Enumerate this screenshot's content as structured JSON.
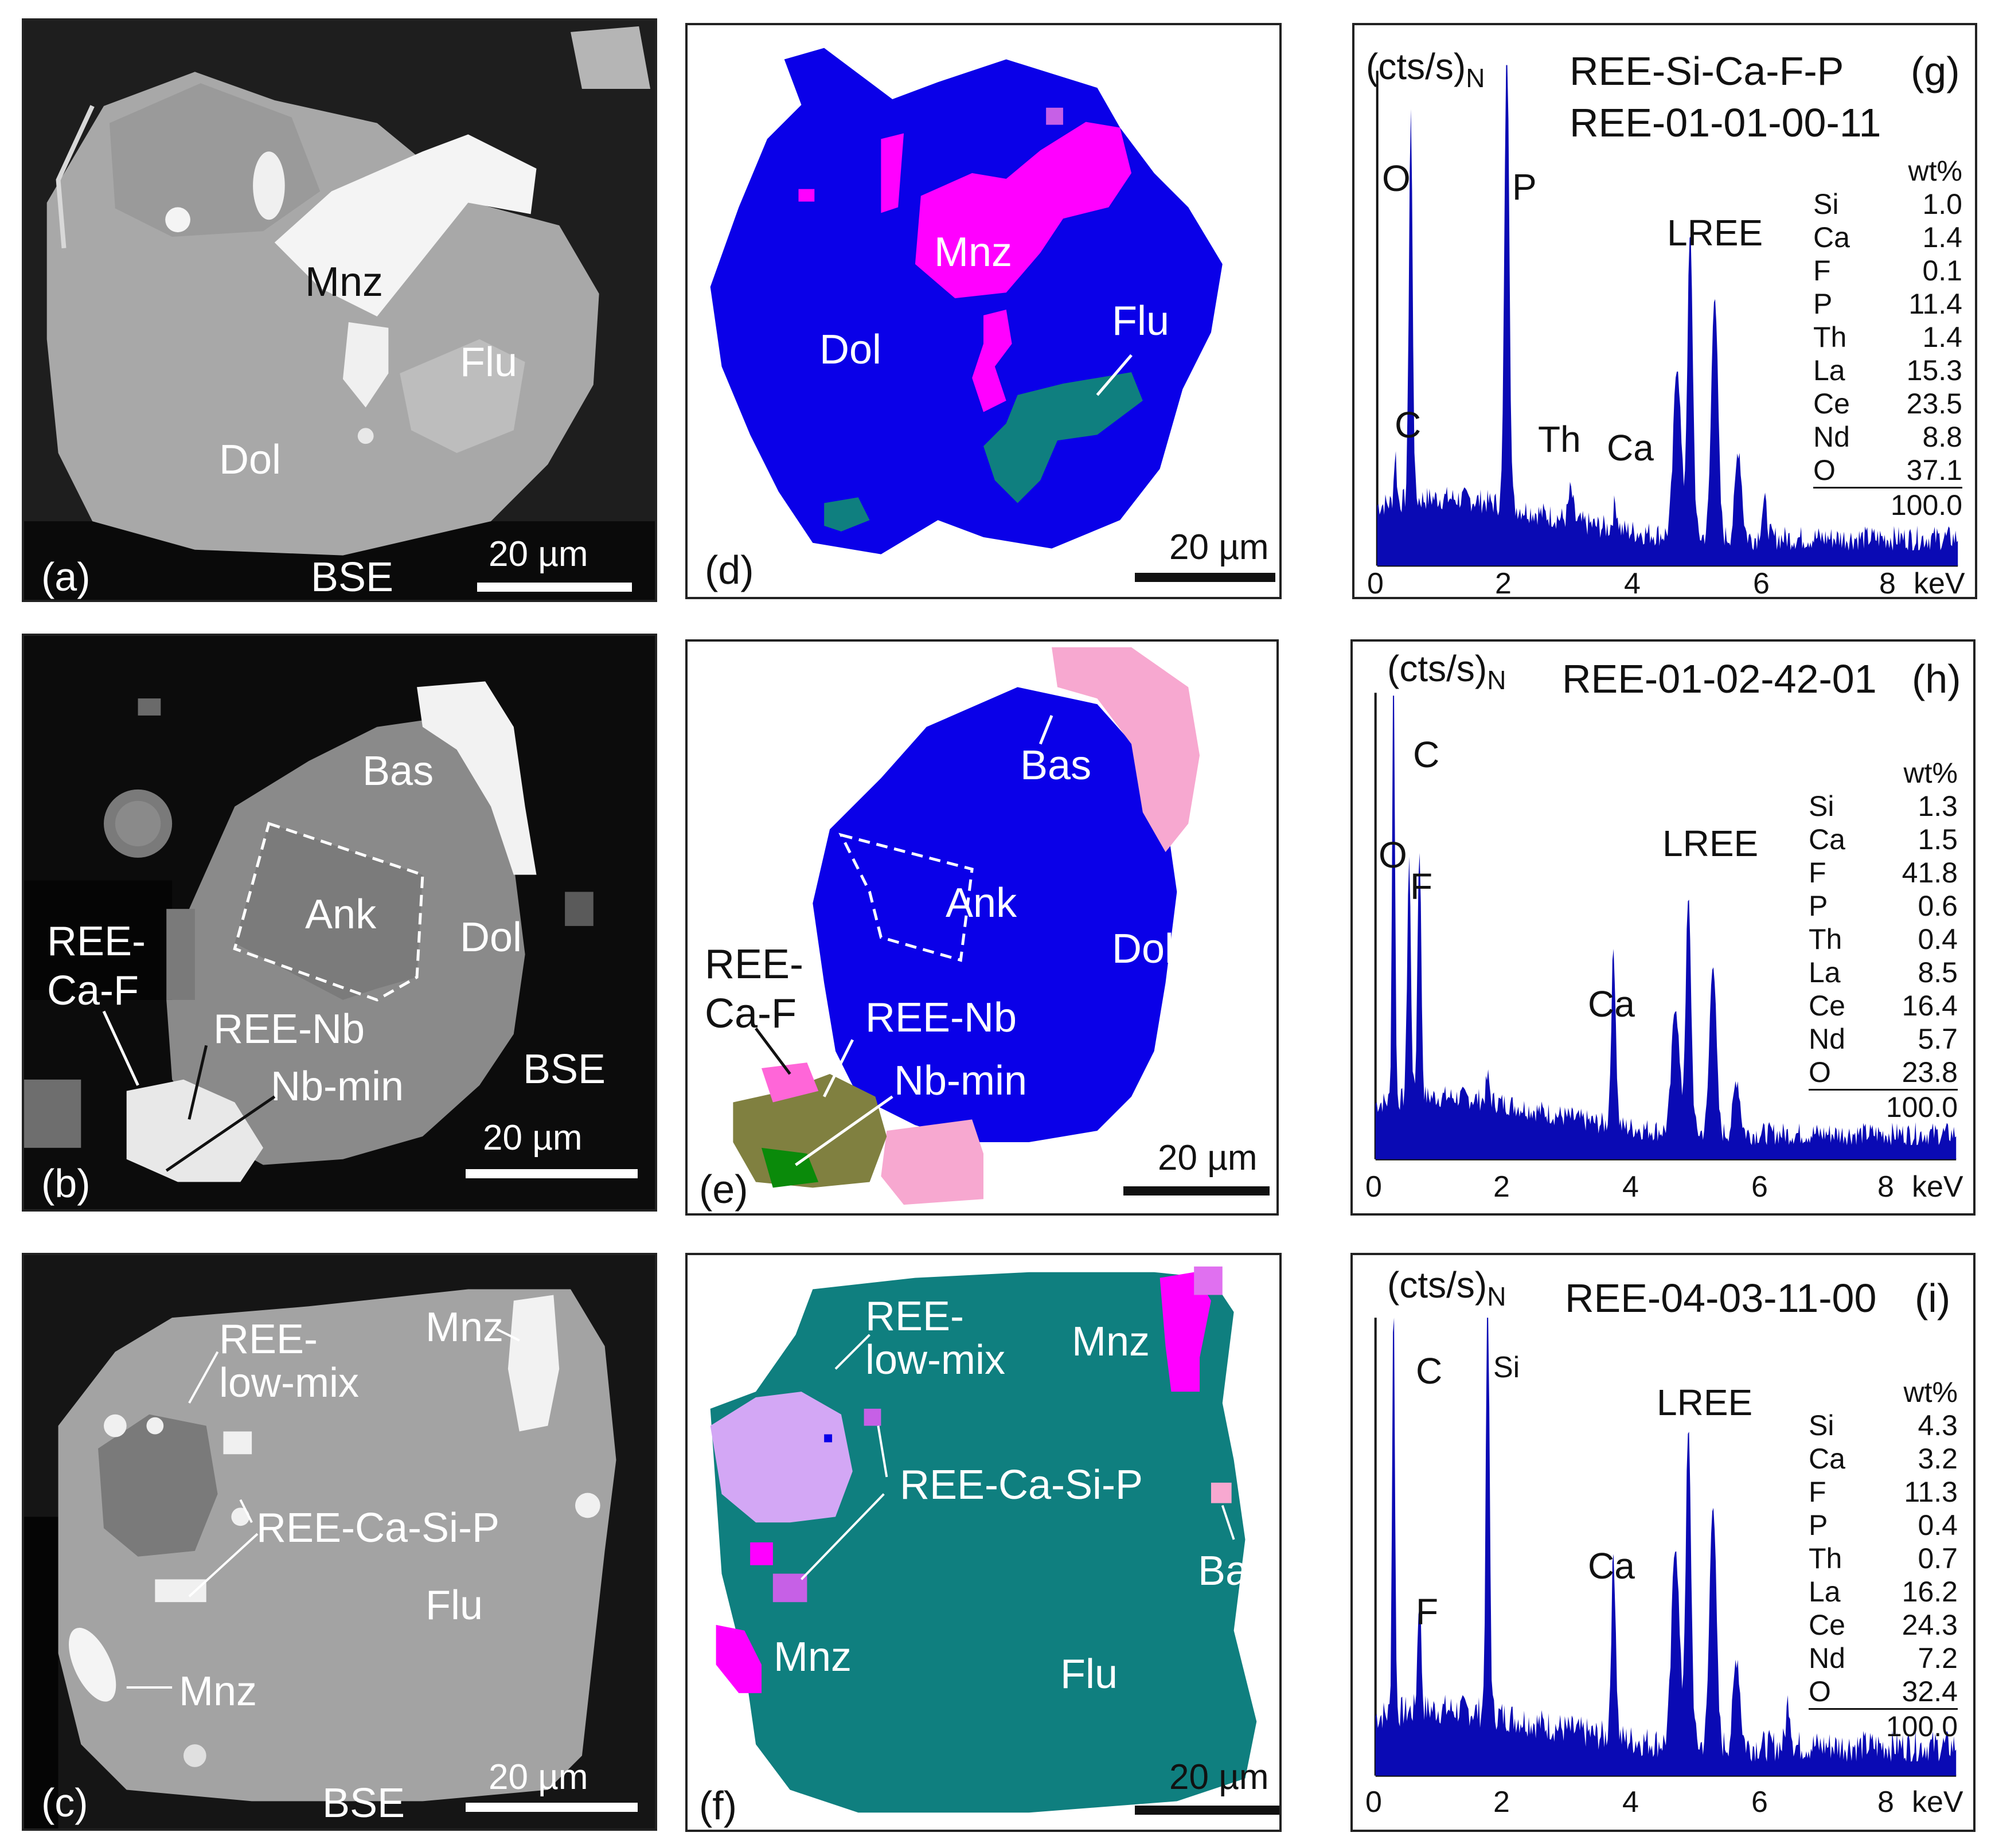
{
  "panels": {
    "a": {
      "letter": "(a)",
      "mode": "BSE",
      "scale": "20 µm",
      "labels": {
        "mnz": "Mnz",
        "flu": "Flu",
        "dol": "Dol"
      }
    },
    "b": {
      "letter": "(b)",
      "mode": "BSE",
      "scale": "20 µm",
      "labels": {
        "bas": "Bas",
        "ank": "Ank",
        "dol": "Dol",
        "reecaf": "REE-\nCa-F",
        "reenb": "REE-Nb",
        "nbmin": "Nb-min"
      }
    },
    "c": {
      "letter": "(c)",
      "mode": "BSE",
      "scale": "20 µm",
      "labels": {
        "mnz1": "Mnz",
        "reelow": "REE-\nlow-mix",
        "reecasip": "REE-Ca-Si-P",
        "flu": "Flu",
        "mnz2": "Mnz"
      }
    },
    "d": {
      "letter": "(d)",
      "scale": "20 µm",
      "labels": {
        "mnz": "Mnz",
        "dol": "Dol",
        "flu": "Flu"
      }
    },
    "e": {
      "letter": "(e)",
      "scale": "20 µm",
      "labels": {
        "bas": "Bas",
        "ank": "Ank",
        "dol": "Dol",
        "reecaf": "REE-\nCa-F",
        "reenb": "REE-Nb",
        "nbmin": "Nb-min"
      }
    },
    "f": {
      "letter": "(f)",
      "scale": "20 µm",
      "labels": {
        "reelow": "REE-\nlow-mix",
        "mnz1": "Mnz",
        "reecasip": "REE-Ca-Si-P",
        "bas": "Bas",
        "mnz2": "Mnz",
        "flu": "Flu"
      }
    },
    "g": {
      "letter": "(g)",
      "ylabel": "(cts/s)",
      "ylabel_sub": "N",
      "title1": "REE-Si-Ca-F-P",
      "title2": "REE-01-01-00-11",
      "peaks": {
        "o": "O",
        "p": "P",
        "c": "C",
        "th": "Th",
        "ca": "Ca",
        "lree": "LREE"
      },
      "comp_header": "wt%",
      "comp": [
        [
          "Si",
          "1.0"
        ],
        [
          "Ca",
          "1.4"
        ],
        [
          "F",
          "0.1"
        ],
        [
          "P",
          "11.4"
        ],
        [
          "Th",
          "1.4"
        ],
        [
          "La",
          "15.3"
        ],
        [
          "Ce",
          "23.5"
        ],
        [
          "Nd",
          "8.8"
        ],
        [
          "O",
          "37.1"
        ]
      ],
      "total": "100.0",
      "xticks": [
        "0",
        "2",
        "4",
        "6",
        "8"
      ],
      "xunit": "keV"
    },
    "h": {
      "letter": "(h)",
      "ylabel": "(cts/s)",
      "ylabel_sub": "N",
      "title1": "REE-01-02-42-01",
      "peaks": {
        "c": "C",
        "o": "O",
        "f": "F",
        "ca": "Ca",
        "lree": "LREE"
      },
      "comp_header": "wt%",
      "comp": [
        [
          "Si",
          "1.3"
        ],
        [
          "Ca",
          "1.5"
        ],
        [
          "F",
          "41.8"
        ],
        [
          "P",
          "0.6"
        ],
        [
          "Th",
          "0.4"
        ],
        [
          "La",
          "8.5"
        ],
        [
          "Ce",
          "16.4"
        ],
        [
          "Nd",
          "5.7"
        ],
        [
          "O",
          "23.8"
        ]
      ],
      "total": "100.0",
      "xticks": [
        "0",
        "2",
        "4",
        "6",
        "8"
      ],
      "xunit": "keV"
    },
    "i": {
      "letter": "(i)",
      "ylabel": "(cts/s)",
      "ylabel_sub": "N",
      "title1": "REE-04-03-11-00",
      "peaks": {
        "c": "C",
        "si": "Si",
        "f": "F",
        "ca": "Ca",
        "lree": "LREE"
      },
      "comp_header": "wt%",
      "comp": [
        [
          "Si",
          "4.3"
        ],
        [
          "Ca",
          "3.2"
        ],
        [
          "F",
          "11.3"
        ],
        [
          "P",
          "0.4"
        ],
        [
          "Th",
          "0.7"
        ],
        [
          "La",
          "16.2"
        ],
        [
          "Ce",
          "24.3"
        ],
        [
          "Nd",
          "7.2"
        ],
        [
          "O",
          "32.4"
        ]
      ],
      "total": "100.0",
      "xticks": [
        "0",
        "2",
        "4",
        "6",
        "8"
      ],
      "xunit": "keV"
    }
  },
  "chart_data": [
    {
      "type": "bar",
      "title": "REE-Si-Ca-F-P REE-01-01-00-11",
      "xlabel": "keV",
      "ylabel": "(cts/s)N",
      "xlim": [
        0,
        9
      ],
      "peaks_keV": {
        "C": 0.28,
        "O": 0.52,
        "P": 2.01,
        "Th": 3.0,
        "Ca": 3.69,
        "LREE": 4.8
      }
    },
    {
      "type": "bar",
      "title": "REE-01-02-42-01",
      "xlabel": "keV",
      "ylabel": "(cts/s)N",
      "xlim": [
        0,
        9
      ],
      "peaks_keV": {
        "C": 0.28,
        "O": 0.52,
        "F": 0.68,
        "Ca": 3.69,
        "LREE": 4.8
      }
    },
    {
      "type": "bar",
      "title": "REE-04-03-11-00",
      "xlabel": "keV",
      "ylabel": "(cts/s)N",
      "xlim": [
        0,
        9
      ],
      "peaks_keV": {
        "C": 0.28,
        "F": 0.68,
        "Si": 1.74,
        "Ca": 3.69,
        "LREE": 4.8
      }
    }
  ],
  "colors": {
    "dol": "#0a00e8",
    "mnz": "#ff00ff",
    "flu": "#0f7f7f",
    "bas": "#f7a8d0",
    "reelow": "#d3a7f5",
    "reecasip": "#c660e6",
    "reecaf": "#ff66d8",
    "reenb": "#808040",
    "nbmin": "#0a8a0a",
    "spectrum": "#0a0ab4"
  }
}
